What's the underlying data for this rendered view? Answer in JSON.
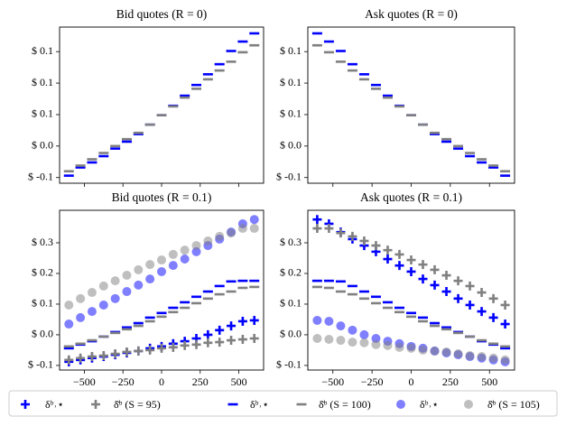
{
  "chart_data": [
    {
      "type": "scatter",
      "title": "Bid quotes (R = 0)",
      "x": [
        -600,
        -525,
        -450,
        -375,
        -300,
        -225,
        -150,
        -75,
        0,
        75,
        150,
        225,
        300,
        375,
        450,
        525,
        600
      ],
      "xlim": [
        -660,
        660
      ],
      "xticks": [
        -500,
        -250,
        0,
        250,
        500
      ],
      "xtick_labels": false,
      "ylim": [
        -0.059,
        0.189
      ],
      "yticks": [
        {
          "value": -0.05,
          "label": "$ -0.1"
        },
        {
          "value": 0,
          "label": "$ 0.0"
        },
        {
          "value": 0.05,
          "label": "$ 0.1"
        },
        {
          "value": 0.1,
          "label": "$ 0.1"
        },
        {
          "value": 0.15,
          "label": "$ 0.1"
        }
      ],
      "series": [
        {
          "color": "#0000ff",
          "marker": "dash",
          "alpha": 1,
          "values": [
            -0.047,
            -0.034,
            -0.026,
            -0.016,
            -0.004,
            0.007,
            0.019,
            0.034,
            0.049,
            0.064,
            0.08,
            0.097,
            0.114,
            0.13,
            0.151,
            0.166,
            0.179
          ]
        },
        {
          "color": "#808080",
          "marker": "dash",
          "alpha": 1,
          "values": [
            -0.04,
            -0.031,
            -0.021,
            -0.011,
            0,
            0.011,
            0.021,
            0.034,
            0.049,
            0.063,
            0.077,
            0.091,
            0.106,
            0.12,
            0.134,
            0.149,
            0.16
          ]
        }
      ]
    },
    {
      "type": "scatter",
      "title": "Ask quotes (R = 0)",
      "x": [
        -600,
        -525,
        -450,
        -375,
        -300,
        -225,
        -150,
        -75,
        0,
        75,
        150,
        225,
        300,
        375,
        450,
        525,
        600
      ],
      "xlim": [
        -660,
        660
      ],
      "xticks": [
        -500,
        -250,
        0,
        250,
        500
      ],
      "xtick_labels": false,
      "ylim": [
        -0.059,
        0.189
      ],
      "yticks": [
        {
          "value": -0.05,
          "label": "$ -0.1"
        },
        {
          "value": 0,
          "label": "$ 0.0"
        },
        {
          "value": 0.05,
          "label": "$ 0.1"
        },
        {
          "value": 0.1,
          "label": "$ 0.1"
        },
        {
          "value": 0.15,
          "label": "$ 0.1"
        }
      ],
      "series": [
        {
          "color": "#0000ff",
          "marker": "dash",
          "alpha": 1,
          "values": [
            0.179,
            0.166,
            0.151,
            0.13,
            0.114,
            0.097,
            0.08,
            0.064,
            0.049,
            0.034,
            0.019,
            0.007,
            -0.004,
            -0.016,
            -0.026,
            -0.034,
            -0.047
          ]
        },
        {
          "color": "#808080",
          "marker": "dash",
          "alpha": 1,
          "values": [
            0.16,
            0.149,
            0.134,
            0.12,
            0.106,
            0.091,
            0.077,
            0.063,
            0.049,
            0.034,
            0.021,
            0.011,
            0,
            -0.011,
            -0.021,
            -0.031,
            -0.04
          ]
        }
      ]
    },
    {
      "type": "scatter",
      "title": "Bid quotes (R = 0.1)",
      "x": [
        -600,
        -525,
        -450,
        -375,
        -300,
        -225,
        -150,
        -75,
        0,
        75,
        150,
        225,
        300,
        375,
        450,
        525,
        600
      ],
      "xlim": [
        -660,
        660
      ],
      "xticks": [
        {
          "value": -500,
          "label": "−500"
        },
        {
          "value": -250,
          "label": "−250"
        },
        0,
        250,
        500
      ],
      "xtick_labels": true,
      "ylim": [
        -0.115,
        0.406
      ],
      "yticks": [
        {
          "value": -0.1,
          "label": "$ -0.1"
        },
        {
          "value": 0,
          "label": "$ 0.0"
        },
        {
          "value": 0.1,
          "label": "$ 0.1"
        },
        {
          "value": 0.2,
          "label": "$ 0.2"
        },
        {
          "value": 0.3,
          "label": "$ 0.3"
        }
      ],
      "series": [
        {
          "color": "#0000ff",
          "marker": "plus",
          "alpha": 1,
          "values": [
            -0.088,
            -0.082,
            -0.076,
            -0.071,
            -0.065,
            -0.059,
            -0.053,
            -0.044,
            -0.038,
            -0.029,
            -0.021,
            -0.012,
            0,
            0.015,
            0.029,
            0.044,
            0.047
          ]
        },
        {
          "color": "#808080",
          "marker": "plus",
          "alpha": 1,
          "values": [
            -0.082,
            -0.076,
            -0.071,
            -0.068,
            -0.062,
            -0.056,
            -0.053,
            -0.05,
            -0.044,
            -0.041,
            -0.035,
            -0.032,
            -0.026,
            -0.024,
            -0.018,
            -0.015,
            -0.012
          ]
        },
        {
          "color": "#0000ff",
          "marker": "dash",
          "alpha": 1,
          "values": [
            -0.044,
            -0.032,
            -0.021,
            -0.006,
            0.009,
            0.024,
            0.038,
            0.056,
            0.071,
            0.088,
            0.106,
            0.124,
            0.141,
            0.159,
            0.174,
            0.176,
            0.176
          ]
        },
        {
          "color": "#808080",
          "marker": "dash",
          "alpha": 1,
          "values": [
            -0.038,
            -0.029,
            -0.018,
            -0.006,
            0.006,
            0.018,
            0.029,
            0.044,
            0.059,
            0.074,
            0.088,
            0.103,
            0.118,
            0.132,
            0.141,
            0.153,
            0.156
          ]
        },
        {
          "color": "#0000ff",
          "marker": "circle",
          "alpha": 0.5,
          "values": [
            0.035,
            0.056,
            0.076,
            0.097,
            0.118,
            0.141,
            0.162,
            0.182,
            0.206,
            0.226,
            0.247,
            0.271,
            0.291,
            0.312,
            0.335,
            0.362,
            0.376
          ]
        },
        {
          "color": "#808080",
          "marker": "circle",
          "alpha": 0.5,
          "values": [
            0.097,
            0.118,
            0.138,
            0.159,
            0.176,
            0.194,
            0.212,
            0.229,
            0.244,
            0.262,
            0.276,
            0.291,
            0.306,
            0.321,
            0.332,
            0.347,
            0.347
          ]
        }
      ]
    },
    {
      "type": "scatter",
      "title": "Ask quotes (R = 0.1)",
      "x": [
        -600,
        -525,
        -450,
        -375,
        -300,
        -225,
        -150,
        -75,
        0,
        75,
        150,
        225,
        300,
        375,
        450,
        525,
        600
      ],
      "xlim": [
        -660,
        660
      ],
      "xticks": [
        {
          "value": -500,
          "label": "−500"
        },
        {
          "value": -250,
          "label": "−250"
        },
        0,
        250,
        500
      ],
      "xtick_labels": true,
      "ylim": [
        -0.115,
        0.406
      ],
      "yticks": [
        {
          "value": -0.1,
          "label": "$ -0.1"
        },
        {
          "value": 0,
          "label": "$ 0.0"
        },
        {
          "value": 0.1,
          "label": "$ 0.1"
        },
        {
          "value": 0.2,
          "label": "$ 0.2"
        },
        {
          "value": 0.3,
          "label": "$ 0.3"
        }
      ],
      "legend": "lower center",
      "series": [
        {
          "name": "δᵇ˒⋆",
          "color": "#0000ff",
          "marker": "plus",
          "alpha": 1,
          "values": [
            0.376,
            0.362,
            0.335,
            0.312,
            0.291,
            0.271,
            0.247,
            0.226,
            0.206,
            0.182,
            0.162,
            0.141,
            0.118,
            0.097,
            0.076,
            0.056,
            0.035
          ]
        },
        {
          "name": "δ̄ᵇ (S = 95)",
          "color": "#808080",
          "marker": "plus",
          "alpha": 1,
          "values": [
            0.347,
            0.347,
            0.332,
            0.321,
            0.306,
            0.291,
            0.276,
            0.262,
            0.244,
            0.229,
            0.212,
            0.194,
            0.176,
            0.159,
            0.138,
            0.118,
            0.097
          ]
        },
        {
          "name": "δᵇ˒⋆",
          "color": "#0000ff",
          "marker": "dash",
          "alpha": 1,
          "values": [
            0.176,
            0.176,
            0.174,
            0.159,
            0.141,
            0.124,
            0.106,
            0.088,
            0.071,
            0.056,
            0.038,
            0.024,
            0.009,
            -0.006,
            -0.021,
            -0.032,
            -0.044
          ]
        },
        {
          "name": "δ̄ᵇ (S = 100)",
          "color": "#808080",
          "marker": "dash",
          "alpha": 1,
          "values": [
            0.156,
            0.153,
            0.141,
            0.132,
            0.118,
            0.103,
            0.088,
            0.074,
            0.059,
            0.044,
            0.029,
            0.018,
            0.006,
            -0.006,
            -0.018,
            -0.029,
            -0.038
          ]
        },
        {
          "name": "δᵇ˒⋆",
          "color": "#0000ff",
          "marker": "circle",
          "alpha": 0.5,
          "values": [
            0.047,
            0.044,
            0.029,
            0.015,
            0,
            -0.012,
            -0.021,
            -0.029,
            -0.038,
            -0.044,
            -0.053,
            -0.059,
            -0.065,
            -0.071,
            -0.076,
            -0.082,
            -0.088
          ]
        },
        {
          "name": "δ̄ᵇ (S = 105)",
          "color": "#808080",
          "marker": "circle",
          "alpha": 0.5,
          "values": [
            -0.012,
            -0.015,
            -0.018,
            -0.024,
            -0.026,
            -0.032,
            -0.035,
            -0.041,
            -0.044,
            -0.05,
            -0.053,
            -0.056,
            -0.062,
            -0.068,
            -0.071,
            -0.076,
            -0.082
          ]
        }
      ]
    }
  ]
}
